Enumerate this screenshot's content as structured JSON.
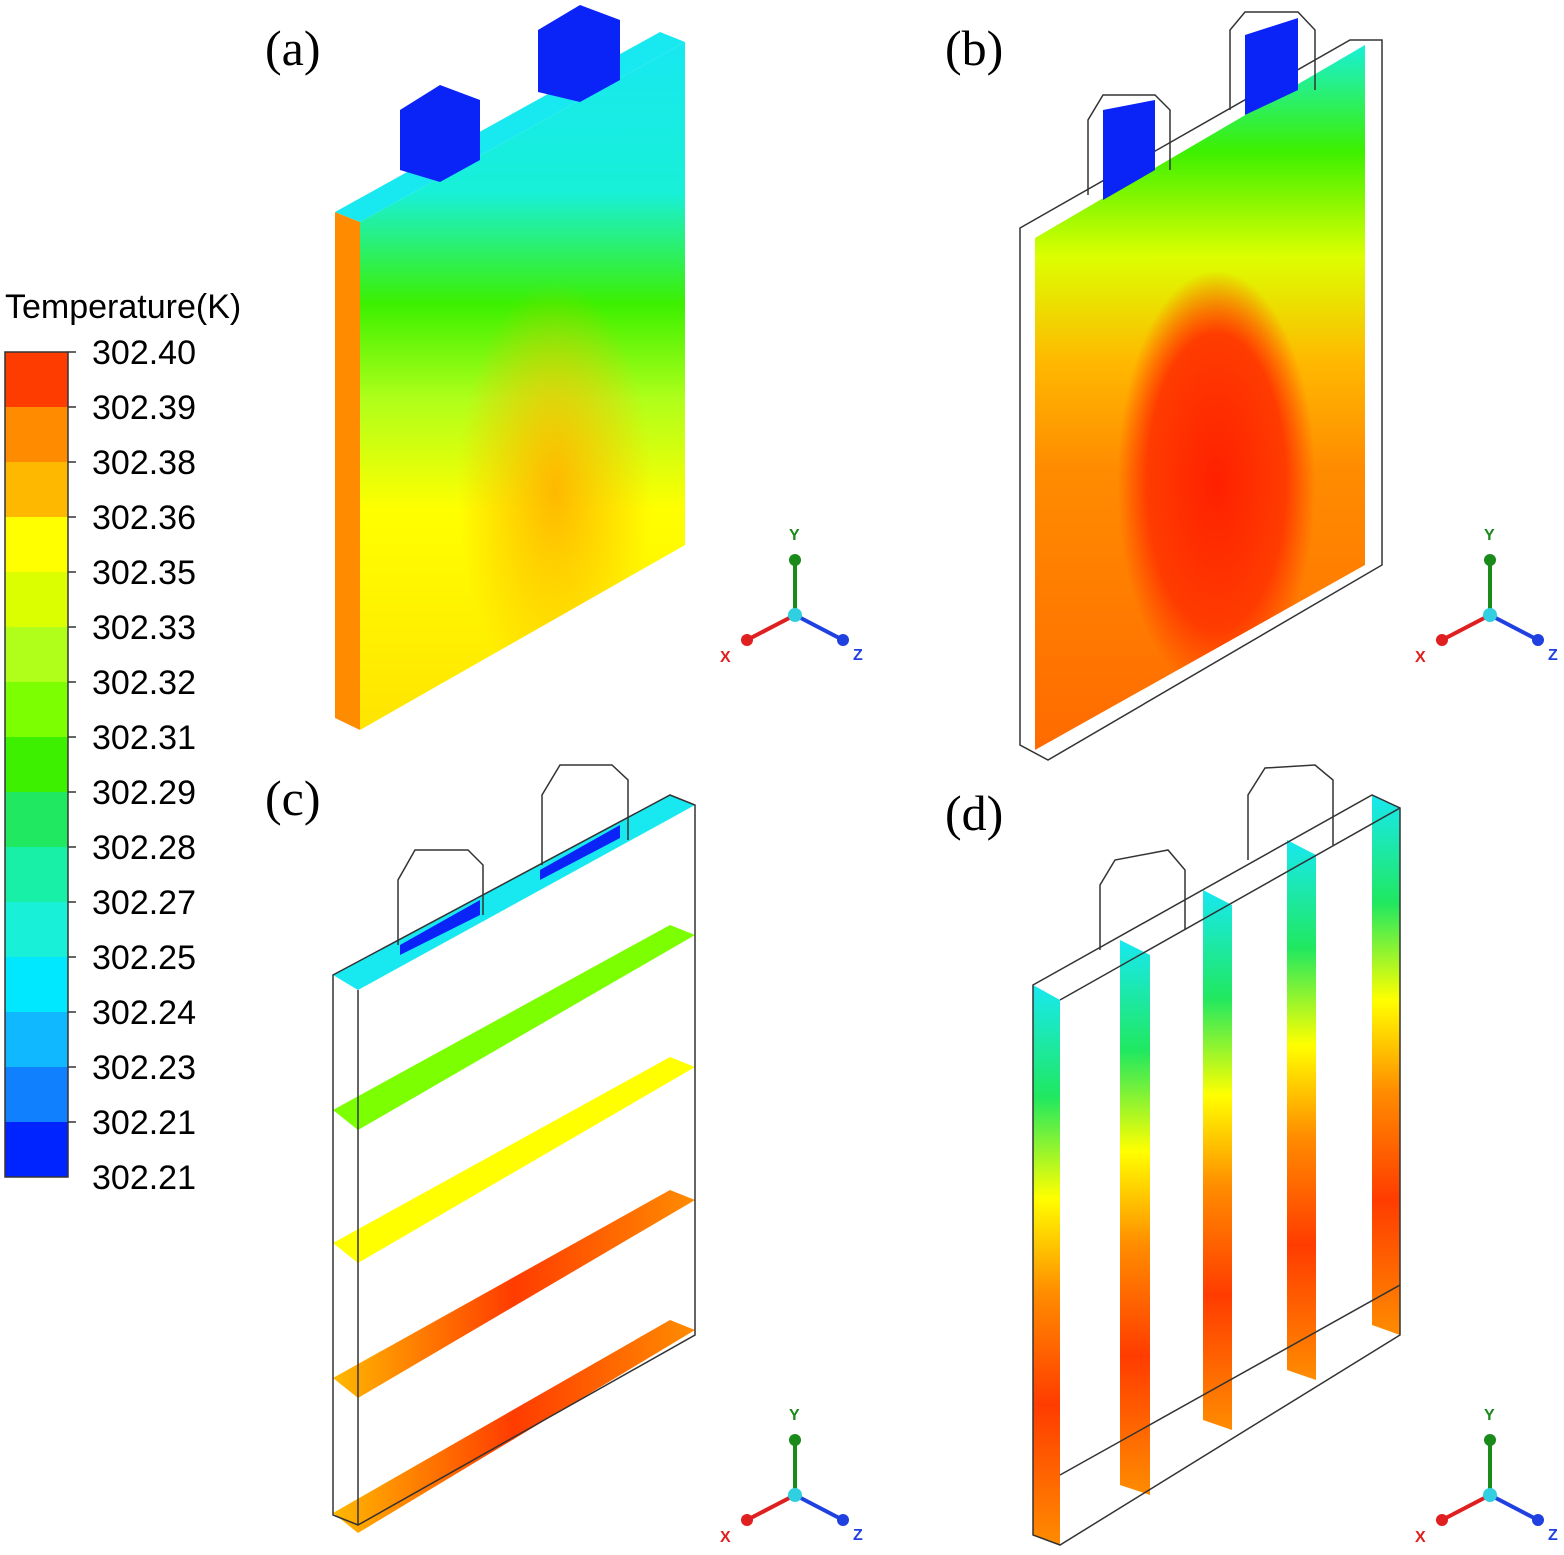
{
  "legend": {
    "title": "Temperature(K)",
    "labels": [
      "302.40",
      "302.39",
      "302.38",
      "302.36",
      "302.35",
      "302.33",
      "302.32",
      "302.31",
      "302.29",
      "302.28",
      "302.27",
      "302.25",
      "302.24",
      "302.23",
      "302.21"
    ],
    "last_label": "302.21",
    "colors": [
      "#ff3c00",
      "#ff8c00",
      "#ffb800",
      "#ffff00",
      "#dcff00",
      "#b0ff1a",
      "#7cff00",
      "#3cf000",
      "#20e860",
      "#18f0a8",
      "#18f0d8",
      "#00e8ff",
      "#10b8ff",
      "#1080ff",
      "#0024ff"
    ]
  },
  "panels": [
    {
      "label": "(a)"
    },
    {
      "label": "(b)"
    },
    {
      "label": "(c)"
    },
    {
      "label": "(d)"
    }
  ],
  "axes": [
    {
      "x": "X",
      "y": "Y",
      "z": "Z"
    },
    {
      "x": "X",
      "y": "Y",
      "z": "Z"
    },
    {
      "x": "X",
      "y": "Y",
      "z": "Z"
    },
    {
      "x": "X",
      "y": "Y",
      "z": "Z"
    }
  ]
}
